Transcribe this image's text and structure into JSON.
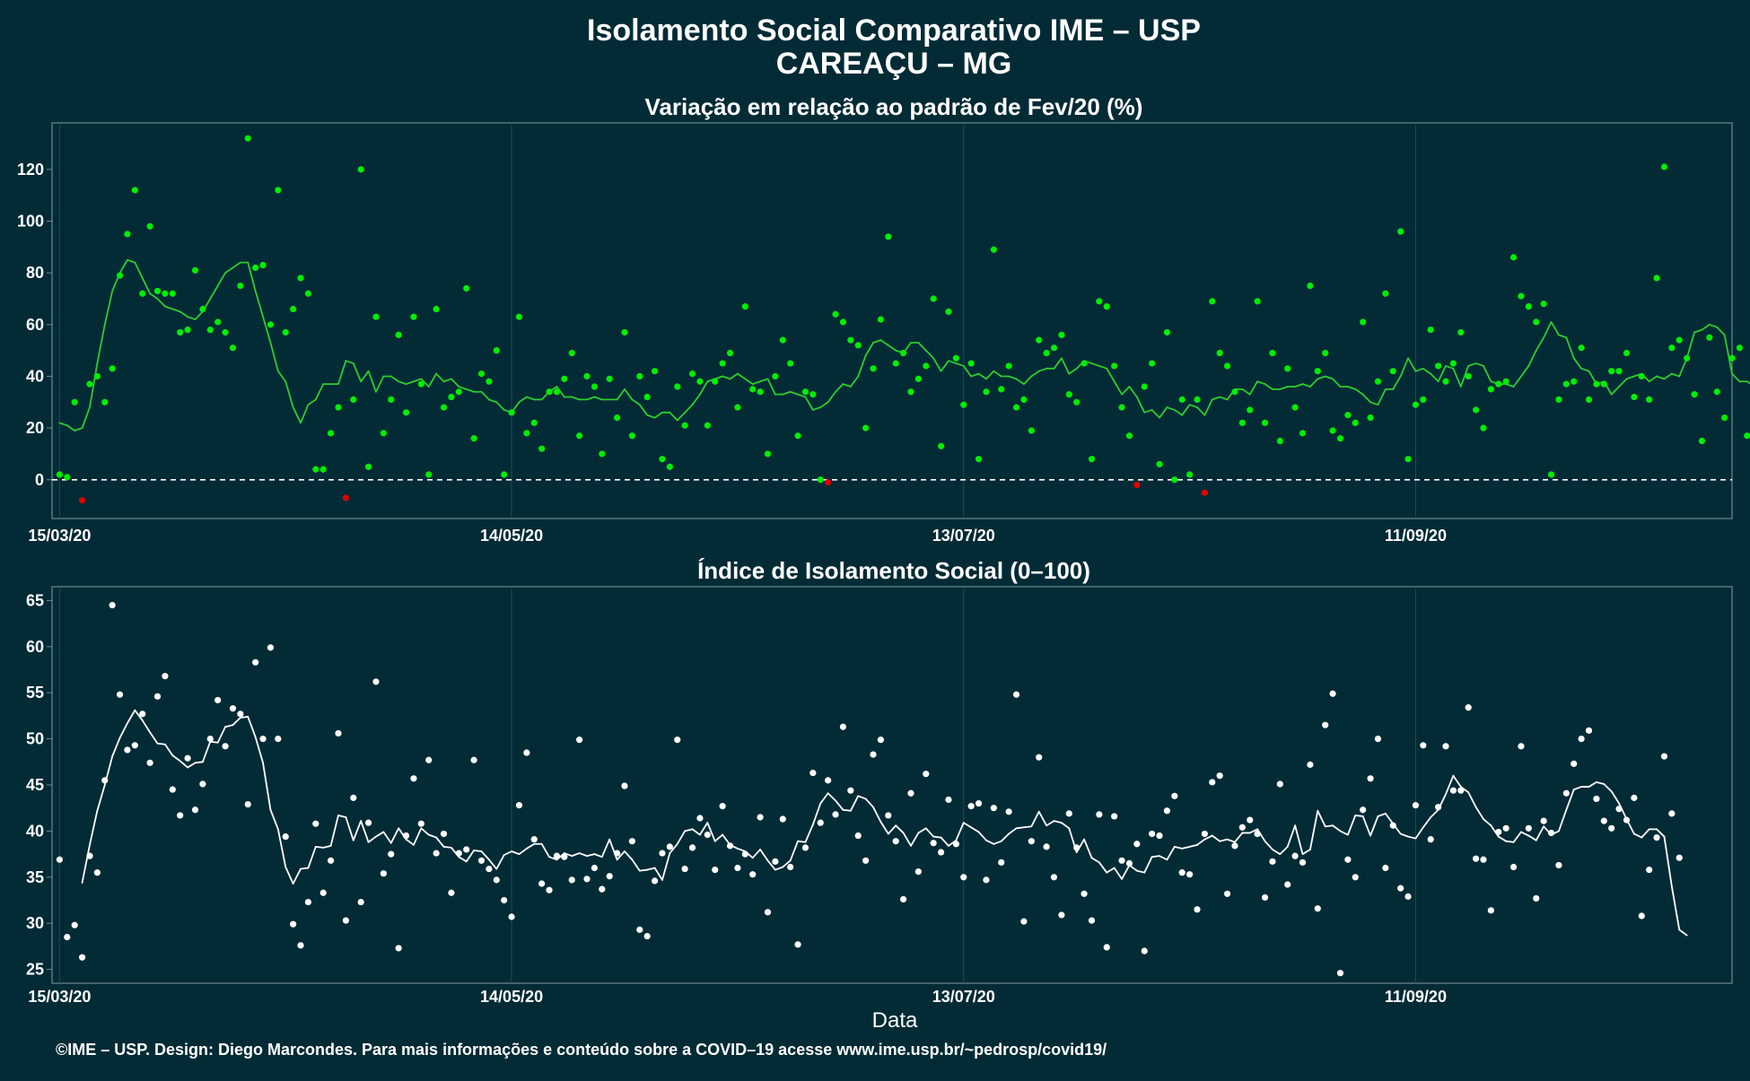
{
  "header": {
    "title": "Isolamento Social Comparativo IME – USP",
    "location": "CAREAÇU – MG"
  },
  "caption": "©IME – USP. Design: Diego Marcondes. Para mais informações e conteúdo sobre a COVID–19 acesse www.ime.usp.br/~pedrosp/covid19/",
  "colors": {
    "background": "#022b36",
    "panel_border": "#6f8a90",
    "grid": "#1f4a55",
    "variation_line": "#2ecc2e",
    "variation_points": "#00ee00",
    "variation_negative": "#e00000",
    "index_line": "#ffffff",
    "index_points": "#ffffff"
  },
  "chart_data": [
    {
      "type": "scatter",
      "title": "Variação em relação ao padrão de Fev/20 (%)",
      "xlabel": "",
      "ylabel": "",
      "x_start": "15/03/20",
      "x_tick_labels": [
        "15/03/20",
        "14/05/20",
        "13/07/20",
        "11/09/20"
      ],
      "x_tick_days": [
        0,
        60,
        120,
        180
      ],
      "xlim_days": [
        -1,
        222
      ],
      "ylim": [
        -15,
        138
      ],
      "y_ticks": [
        0,
        20,
        40,
        60,
        80,
        100,
        120
      ],
      "reference_line": 0,
      "series": [
        {
          "role": "daily_points",
          "values": [
            2,
            1,
            30,
            -8,
            37,
            40,
            30,
            43,
            79,
            95,
            112,
            72,
            98,
            73,
            72,
            72,
            57,
            58,
            81,
            66,
            58,
            61,
            57,
            51,
            75,
            132,
            82,
            83,
            60,
            112,
            57,
            66,
            78,
            72,
            4,
            4,
            18,
            28,
            -7,
            31,
            120,
            5,
            63,
            18,
            31,
            56,
            26,
            63,
            37,
            2,
            66,
            28,
            32,
            34,
            74,
            16,
            41,
            38,
            50,
            2,
            26,
            63,
            18,
            22,
            12,
            34,
            34,
            39,
            49,
            17,
            40,
            36,
            10,
            39,
            24,
            57,
            17,
            40,
            32,
            42,
            8,
            5,
            36,
            21,
            41,
            38,
            21,
            38,
            45,
            49,
            28,
            67,
            35,
            34,
            10,
            40,
            54,
            45,
            17,
            34,
            33,
            0,
            -1,
            64,
            61,
            54,
            52,
            20,
            43,
            62,
            94,
            45,
            49,
            34,
            39,
            44,
            70,
            13,
            65,
            47,
            29,
            45,
            8,
            34,
            89,
            35,
            44,
            28,
            31,
            19,
            54,
            49,
            51,
            56,
            33,
            30,
            45,
            8,
            69,
            67,
            44,
            28,
            17,
            -2,
            36,
            45,
            6,
            57,
            0,
            31,
            2,
            31,
            -5,
            69,
            49,
            44,
            34,
            22,
            27,
            69,
            22,
            49,
            15,
            43,
            28,
            18,
            75,
            42,
            49,
            19,
            16,
            25,
            22,
            61,
            24,
            38,
            72,
            42,
            96,
            8,
            29,
            31,
            58,
            44,
            38,
            45,
            57,
            40,
            27,
            20,
            35,
            37,
            38,
            86,
            71,
            67,
            61,
            68,
            2,
            31,
            37,
            38,
            51,
            31,
            37,
            37,
            42,
            42,
            49,
            32,
            40,
            31,
            78,
            121,
            51,
            54,
            47,
            33,
            15,
            55,
            34,
            24,
            47,
            51,
            17,
            33
          ]
        },
        {
          "role": "moving_average",
          "start_day": 0,
          "values": [
            22,
            21,
            19,
            20,
            28,
            45,
            60,
            73,
            80,
            85,
            84,
            78,
            72,
            70,
            67,
            66,
            65,
            63,
            62,
            65,
            70,
            75,
            80,
            82,
            84,
            84,
            73,
            63,
            53,
            42,
            38,
            28,
            22,
            29,
            31,
            37,
            37,
            37,
            46,
            45,
            38,
            42,
            34,
            40,
            40,
            38,
            37,
            38,
            39,
            36,
            41,
            38,
            39,
            36,
            35,
            34,
            34,
            31,
            30,
            27,
            26,
            30,
            32,
            31,
            31,
            34,
            36,
            32,
            32,
            31,
            31,
            32,
            31,
            31,
            31,
            35,
            31,
            29,
            25,
            24,
            26,
            26,
            23,
            26,
            29,
            33,
            38,
            39,
            40,
            39,
            41,
            39,
            37,
            38,
            39,
            33,
            33,
            34,
            33,
            32,
            27,
            28,
            30,
            34,
            37,
            36,
            40,
            48,
            53,
            54,
            52,
            50,
            49,
            53,
            53,
            50,
            47,
            42,
            46,
            45,
            44,
            40,
            41,
            39,
            42,
            40,
            40,
            39,
            37,
            40,
            42,
            43,
            43,
            47,
            41,
            43,
            46,
            45,
            44,
            43,
            38,
            33,
            36,
            32,
            26,
            27,
            24,
            28,
            27,
            25,
            29,
            28,
            25,
            31,
            32,
            31,
            35,
            35,
            33,
            38,
            37,
            35,
            35,
            36,
            36,
            37,
            36,
            39,
            40,
            39,
            36,
            36,
            35,
            33,
            30,
            29,
            35,
            35,
            40,
            47,
            42,
            43,
            41,
            38,
            44,
            43,
            36,
            44,
            45,
            44,
            38,
            37,
            37,
            36,
            40,
            44,
            50,
            55,
            61,
            56,
            55,
            47,
            43,
            42,
            37,
            38,
            33,
            36,
            39,
            40,
            41,
            38,
            40,
            39,
            41,
            40,
            47,
            57,
            58,
            60,
            59,
            56,
            41,
            38,
            38,
            36
          ]
        }
      ]
    },
    {
      "type": "scatter",
      "title": "Índice de Isolamento Social (0–100)",
      "xlabel": "Data",
      "ylabel": "",
      "x_start": "15/03/20",
      "x_tick_labels": [
        "15/03/20",
        "14/05/20",
        "13/07/20",
        "11/09/20"
      ],
      "x_tick_days": [
        0,
        60,
        120,
        180
      ],
      "xlim_days": [
        -1,
        222
      ],
      "ylim": [
        23.5,
        66.5
      ],
      "y_ticks": [
        25,
        30,
        35,
        40,
        45,
        50,
        55,
        60,
        65
      ],
      "series": [
        {
          "role": "daily_points",
          "values": [
            36.9,
            28.5,
            29.8,
            26.3,
            37.3,
            35.5,
            45.5,
            64.5,
            54.8,
            48.8,
            49.3,
            52.7,
            47.4,
            54.6,
            56.8,
            44.5,
            41.7,
            47.9,
            42.3,
            45.1,
            50.0,
            54.2,
            49.2,
            53.3,
            52.7,
            42.9,
            58.3,
            50.0,
            59.9,
            50.0,
            39.4,
            29.9,
            27.6,
            32.3,
            40.8,
            33.3,
            36.8,
            50.6,
            30.3,
            43.6,
            32.3,
            40.9,
            56.2,
            35.4,
            37.5,
            27.3,
            39.5,
            45.7,
            40.8,
            47.7,
            37.6,
            39.7,
            33.3,
            37.6,
            38.0,
            47.7,
            36.8,
            35.9,
            34.7,
            32.5,
            30.7,
            42.8,
            48.5,
            39.1,
            34.3,
            33.6,
            37.3,
            37.2,
            34.7,
            49.9,
            34.8,
            36.0,
            33.7,
            35.1,
            37.6,
            44.9,
            38.9,
            29.3,
            28.6,
            34.6,
            37.6,
            38.3,
            49.9,
            35.9,
            38.2,
            41.4,
            39.6,
            35.8,
            42.7,
            38.4,
            36.0,
            37.5,
            35.3,
            41.5,
            31.2,
            36.7,
            41.3,
            36.1,
            27.7,
            38.2,
            46.3,
            40.9,
            45.5,
            41.8,
            51.3,
            44.4,
            39.5,
            36.8,
            48.3,
            49.9,
            41.7,
            38.9,
            32.6,
            44.1,
            35.6,
            46.2,
            38.7,
            37.7,
            43.4,
            38.6,
            35.0,
            42.7,
            43.0,
            34.7,
            42.5,
            36.6,
            42.1,
            54.8,
            30.2,
            38.9,
            48.0,
            38.3,
            35.0,
            30.9,
            41.9,
            38.2,
            33.2,
            30.3,
            41.8,
            27.4,
            41.6,
            36.8,
            36.5,
            38.6,
            27.0,
            39.7,
            39.5,
            42.2,
            43.8,
            35.5,
            35.3,
            31.5,
            39.7,
            45.3,
            46.0,
            33.2,
            38.4,
            40.4,
            41.2,
            39.7,
            32.8,
            36.7,
            45.1,
            34.2,
            37.3,
            36.6,
            47.2,
            31.6,
            51.5,
            54.9,
            24.6,
            36.9,
            35.0,
            42.3,
            45.7,
            50.0,
            36.0,
            40.6,
            33.8,
            32.9,
            42.8,
            49.3,
            39.1,
            42.6,
            49.2,
            44.4,
            44.4,
            53.4,
            37.0,
            36.9,
            31.4,
            39.9,
            40.3,
            36.1,
            49.2,
            40.3,
            32.7,
            41.1,
            39.8,
            36.3,
            44.1,
            47.3,
            50.0,
            50.9,
            43.5,
            41.1,
            40.3,
            42.4,
            41.2,
            43.6,
            30.8,
            35.8,
            39.3,
            48.1,
            41.9,
            37.1
          ]
        },
        {
          "role": "moving_average",
          "start_day": 3,
          "values": [
            34.4,
            38.5,
            42.2,
            45.0,
            48.1,
            50.1,
            51.7,
            53.1,
            52.0,
            50.7,
            49.5,
            49.4,
            48.2,
            47.6,
            46.9,
            47.4,
            47.5,
            49.7,
            49.6,
            51.3,
            51.5,
            52.3,
            52.4,
            50.2,
            47.4,
            42.3,
            40.2,
            36.1,
            34.3,
            35.9,
            36.0,
            38.3,
            38.2,
            38.4,
            41.7,
            41.5,
            39.0,
            41.1,
            38.8,
            39.4,
            39.9,
            38.7,
            40.3,
            39.1,
            38.5,
            40.3,
            39.6,
            39.3,
            38.3,
            38.2,
            37.2,
            36.7,
            37.9,
            37.8,
            36.9,
            35.9,
            37.4,
            37.8,
            37.5,
            38.1,
            38.6,
            38.6,
            37.2,
            36.9,
            37.6,
            37.3,
            37.6,
            37.3,
            37.5,
            37.2,
            39.1,
            36.9,
            37.8,
            36.9,
            35.7,
            35.8,
            36.0,
            34.7,
            37.6,
            38.6,
            40.0,
            40.2,
            39.6,
            40.9,
            38.9,
            39.6,
            38.5,
            38.1,
            37.8,
            37.1,
            38.0,
            36.8,
            35.8,
            36.1,
            36.8,
            38.9,
            38.8,
            40.7,
            43.0,
            44.1,
            43.3,
            42.3,
            42.2,
            43.8,
            43.5,
            42.6,
            41.0,
            39.7,
            40.6,
            39.8,
            38.4,
            39.8,
            40.3,
            39.4,
            39.3,
            38.4,
            39.0,
            40.9,
            40.4,
            39.9,
            39.0,
            38.6,
            38.9,
            39.7,
            40.3,
            40.4,
            40.5,
            42.1,
            40.6,
            41.1,
            40.9,
            40.3,
            37.7,
            39.1,
            37.1,
            36.6,
            35.5,
            36.0,
            34.8,
            36.3,
            35.7,
            35.5,
            37.2,
            37.3,
            36.9,
            38.3,
            38.1,
            38.3,
            38.5,
            39.1,
            39.5,
            38.9,
            39.1,
            38.8,
            39.8,
            39.8,
            40.2,
            38.9,
            38.0,
            37.5,
            38.3,
            40.6,
            37.5,
            38.0,
            42.2,
            40.5,
            40.6,
            40.0,
            39.6,
            41.7,
            41.6,
            39.5,
            41.6,
            41.9,
            40.8,
            39.7,
            39.4,
            39.2,
            40.4,
            41.5,
            42.3,
            44.0,
            46.0,
            44.8,
            44.2,
            42.6,
            41.3,
            40.6,
            39.4,
            38.9,
            38.8,
            39.9,
            39.5,
            39.0,
            40.5,
            39.6,
            40.0,
            42.3,
            44.5,
            44.8,
            44.8,
            45.3,
            45.1,
            44.3,
            43.0,
            41.3,
            39.7,
            39.3,
            40.2,
            40.2,
            39.4,
            34.0,
            29.3,
            28.7
          ]
        }
      ]
    }
  ]
}
